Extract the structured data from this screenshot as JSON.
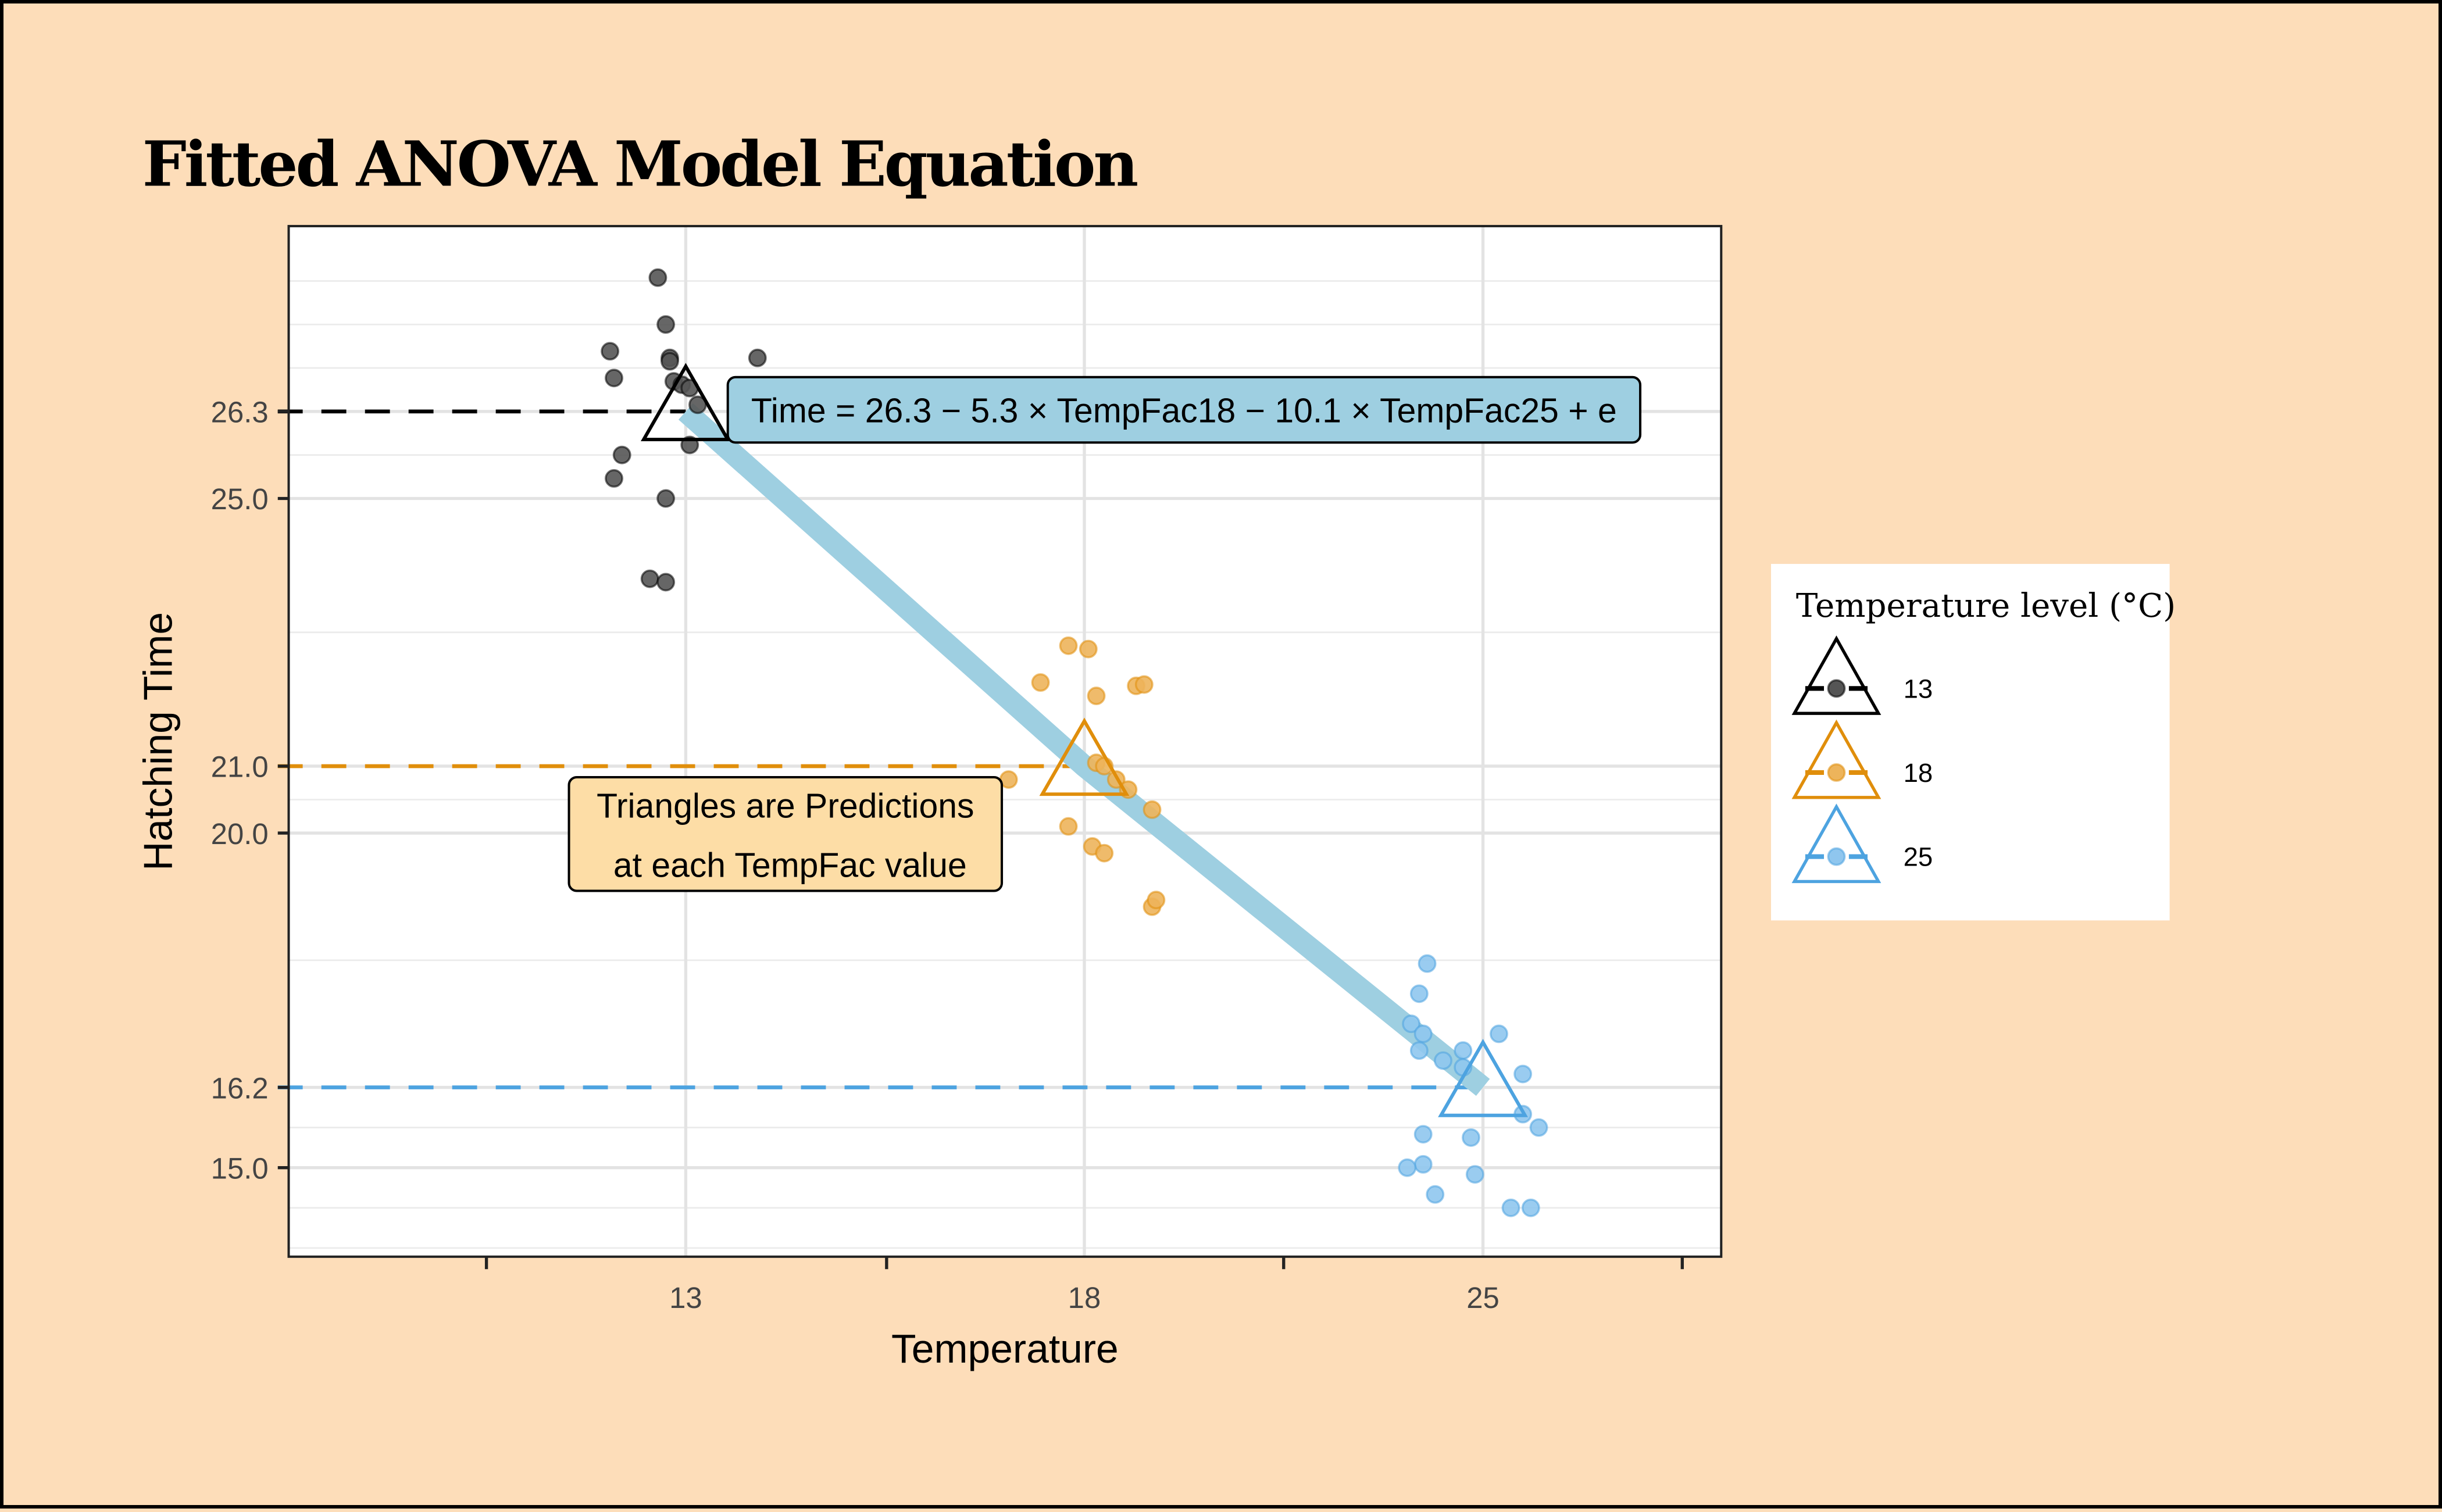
{
  "chart_data": {
    "type": "scatter",
    "title": "Fitted ANOVA Model Equation",
    "xlabel": "Temperature",
    "ylabel": "Hatching Time",
    "categories": [
      "13",
      "18",
      "25"
    ],
    "y_ticks": [
      15.0,
      16.2,
      20.0,
      21.0,
      25.0,
      26.3
    ],
    "y_tick_labels": [
      "15.0",
      "16.2",
      "20.0",
      "21.0",
      "25.0",
      "26.3"
    ],
    "ylim": [
      13.67,
      29.07
    ],
    "grid": true,
    "legend": {
      "title": "Temperature level (°C)",
      "position": "right",
      "entries": [
        "13",
        "18",
        "25"
      ]
    },
    "colors": {
      "13": "#000000",
      "18": "#E08E0B",
      "25": "#4DA3E0",
      "fit_line": "#9ECFE1",
      "background": "#FDDDB9",
      "annotation_fill": "#FDDDA6",
      "equation_fill": "#9ECFE1"
    },
    "predictions": [
      {
        "category": "13",
        "value": 26.3
      },
      {
        "category": "18",
        "value": 21.0
      },
      {
        "category": "25",
        "value": 16.2
      }
    ],
    "series": [
      {
        "name": "13",
        "points": [
          {
            "xj": -0.07,
            "y": 28.3
          },
          {
            "xj": -0.05,
            "y": 27.6
          },
          {
            "xj": -0.19,
            "y": 27.2
          },
          {
            "xj": -0.04,
            "y": 27.1
          },
          {
            "xj": -0.04,
            "y": 27.05
          },
          {
            "xj": -0.18,
            "y": 26.8
          },
          {
            "xj": -0.03,
            "y": 26.75
          },
          {
            "xj": -0.01,
            "y": 26.7
          },
          {
            "xj": 0.01,
            "y": 26.65
          },
          {
            "xj": 0.03,
            "y": 26.4
          },
          {
            "xj": 0.18,
            "y": 27.1
          },
          {
            "xj": 0.01,
            "y": 25.8
          },
          {
            "xj": -0.16,
            "y": 25.65
          },
          {
            "xj": -0.18,
            "y": 25.3
          },
          {
            "xj": -0.05,
            "y": 25.0
          },
          {
            "xj": -0.09,
            "y": 23.8
          },
          {
            "xj": -0.05,
            "y": 23.75
          }
        ]
      },
      {
        "name": "18",
        "points": [
          {
            "xj": -0.04,
            "y": 22.8
          },
          {
            "xj": 0.01,
            "y": 22.75
          },
          {
            "xj": -0.11,
            "y": 22.25
          },
          {
            "xj": 0.03,
            "y": 22.05
          },
          {
            "xj": 0.13,
            "y": 22.2
          },
          {
            "xj": 0.15,
            "y": 22.22
          },
          {
            "xj": 0.03,
            "y": 21.05
          },
          {
            "xj": 0.05,
            "y": 21.0
          },
          {
            "xj": 0.08,
            "y": 20.8
          },
          {
            "xj": 0.11,
            "y": 20.65
          },
          {
            "xj": -0.19,
            "y": 20.8
          },
          {
            "xj": 0.17,
            "y": 20.35
          },
          {
            "xj": -0.04,
            "y": 20.1
          },
          {
            "xj": 0.02,
            "y": 19.8
          },
          {
            "xj": 0.05,
            "y": 19.7
          },
          {
            "xj": 0.17,
            "y": 18.9
          },
          {
            "xj": 0.18,
            "y": 19.0
          }
        ]
      },
      {
        "name": "25",
        "points": [
          {
            "xj": -0.14,
            "y": 18.05
          },
          {
            "xj": -0.16,
            "y": 17.6
          },
          {
            "xj": -0.18,
            "y": 17.15
          },
          {
            "xj": -0.15,
            "y": 17.0
          },
          {
            "xj": -0.16,
            "y": 16.75
          },
          {
            "xj": -0.1,
            "y": 16.6
          },
          {
            "xj": -0.05,
            "y": 16.75
          },
          {
            "xj": -0.05,
            "y": 16.5
          },
          {
            "xj": 0.04,
            "y": 17.0
          },
          {
            "xj": 0.1,
            "y": 16.4
          },
          {
            "xj": 0.1,
            "y": 15.8
          },
          {
            "xj": 0.14,
            "y": 15.6
          },
          {
            "xj": -0.15,
            "y": 15.5
          },
          {
            "xj": -0.03,
            "y": 15.45
          },
          {
            "xj": -0.15,
            "y": 15.05
          },
          {
            "xj": -0.19,
            "y": 15.0
          },
          {
            "xj": -0.02,
            "y": 14.9
          },
          {
            "xj": -0.12,
            "y": 14.6
          },
          {
            "xj": 0.07,
            "y": 14.4
          },
          {
            "xj": 0.12,
            "y": 14.4
          }
        ]
      }
    ],
    "annotations": {
      "equation": "Time = 26.3 − 5.3 × TempFac18 − 10.1 × TempFac25 + e",
      "note_line1": "Triangles are Predictions",
      "note_line2": "at each TempFac value"
    }
  }
}
